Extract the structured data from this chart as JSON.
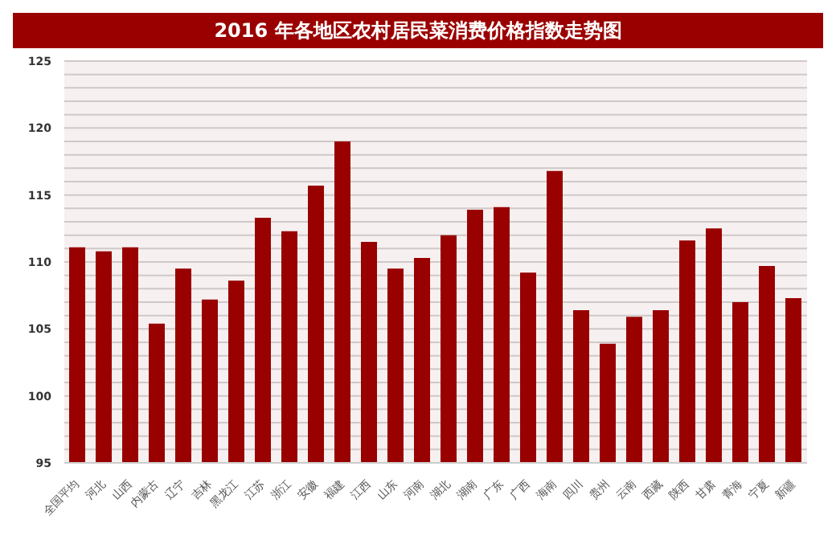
{
  "chart_data": {
    "type": "bar",
    "title": "2016 年各地区农村居民菜消费价格指数走势图",
    "categories": [
      "全国平均",
      "河北",
      "山西",
      "内蒙古",
      "辽宁",
      "吉林",
      "黑龙江",
      "江苏",
      "浙江",
      "安徽",
      "福建",
      "江西",
      "山东",
      "河南",
      "湖北",
      "湖南",
      "广东",
      "广西",
      "海南",
      "四川",
      "贵州",
      "云南",
      "西藏",
      "陕西",
      "甘肃",
      "青海",
      "宁夏",
      "新疆"
    ],
    "values": [
      111.1,
      110.8,
      111.1,
      105.4,
      109.5,
      107.2,
      108.6,
      113.3,
      112.3,
      115.7,
      119.0,
      111.5,
      109.5,
      110.3,
      112.0,
      113.9,
      114.1,
      109.2,
      116.8,
      106.4,
      103.9,
      105.9,
      106.4,
      111.6,
      112.5,
      107.0,
      109.7,
      107.3
    ],
    "color": "#990000",
    "ylim": [
      95,
      125
    ],
    "yticks": [
      95,
      {
        "value": 96,
        "label": null
      },
      {
        "value": 97,
        "label": null
      },
      {
        "value": 98,
        "label": null
      },
      {
        "value": 99,
        "label": null
      },
      100,
      {
        "value": 101,
        "label": null
      },
      {
        "value": 102,
        "label": null
      },
      {
        "value": 103,
        "label": null
      },
      {
        "value": 104,
        "label": null
      },
      105,
      {
        "value": 106,
        "label": null
      },
      {
        "value": 107,
        "label": null
      },
      {
        "value": 108,
        "label": null
      },
      {
        "value": 109,
        "label": null
      },
      110,
      {
        "value": 111,
        "label": null
      },
      {
        "value": 112,
        "label": null
      },
      {
        "value": 113,
        "label": null
      },
      {
        "value": 114,
        "label": null
      },
      115,
      {
        "value": 116,
        "label": null
      },
      {
        "value": 117,
        "label": null
      },
      {
        "value": 118,
        "label": null
      },
      {
        "value": 119,
        "label": null
      },
      120,
      {
        "value": 121,
        "label": null
      },
      {
        "value": 122,
        "label": null
      },
      {
        "value": 123,
        "label": null
      },
      {
        "value": 124,
        "label": null
      },
      125
    ],
    "grid": "y"
  }
}
